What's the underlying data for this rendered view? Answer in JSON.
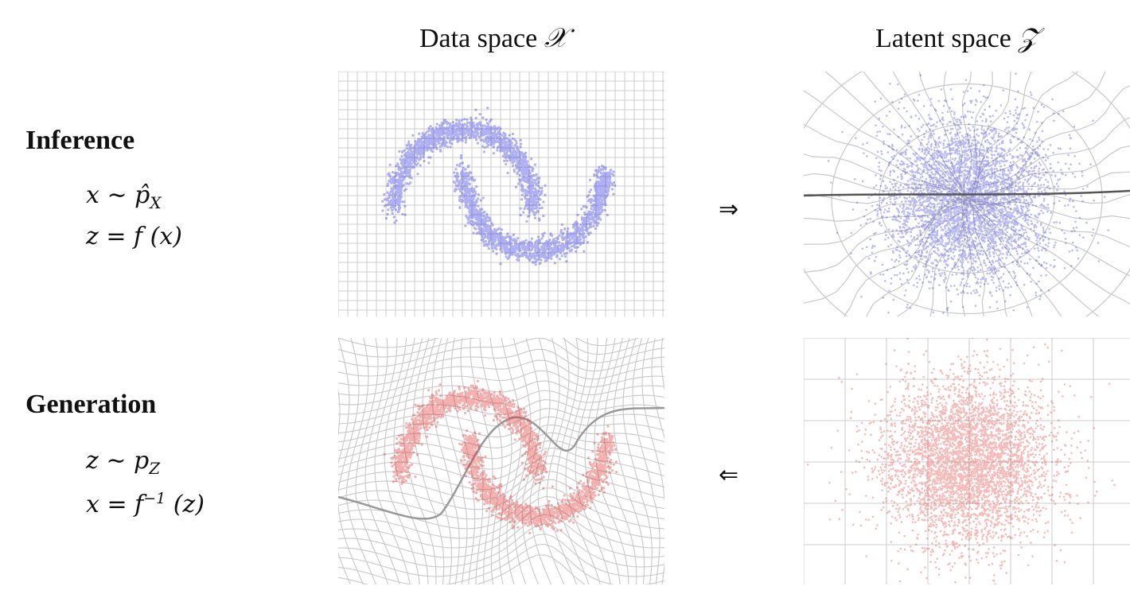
{
  "header": {
    "data_space_label": "Data space",
    "data_space_symbol": "𝒳",
    "latent_space_label": "Latent space",
    "latent_space_symbol": "𝒵"
  },
  "rows": {
    "inference": {
      "title": "Inference",
      "eq1": "x ∼ p̂",
      "eq1_sub": "X",
      "eq2": "z = f (x)",
      "arrow": "⇒"
    },
    "generation": {
      "title": "Generation",
      "eq1": "z ∼ p",
      "eq1_sub": "Z",
      "eq2_pre": "x = f",
      "eq2_sup": "−1",
      "eq2_post": " (z)",
      "arrow": "⇐"
    }
  },
  "colors": {
    "inference_points": "#1f1fe0",
    "generation_points": "#e0201c",
    "grid": "#c8c8c8",
    "warped_axis": "#555555"
  }
}
